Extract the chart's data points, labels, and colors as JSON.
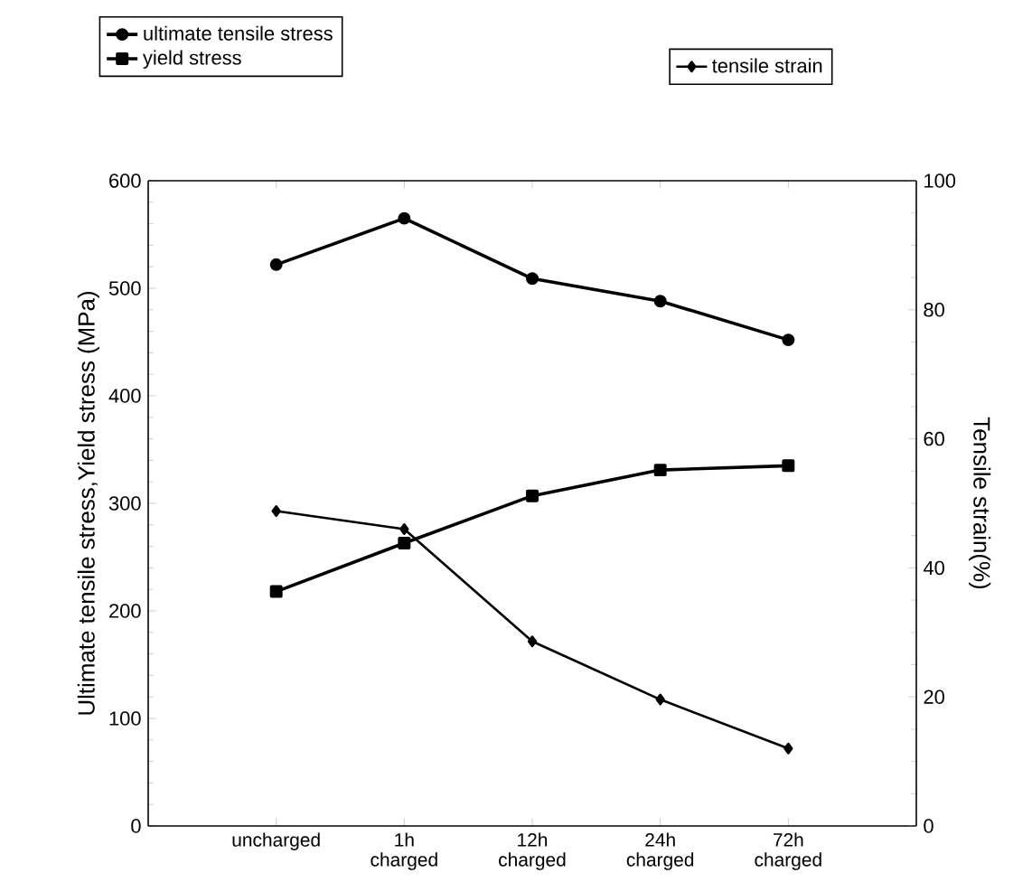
{
  "chart_data": {
    "type": "line",
    "xlabel": null,
    "ylabel": "Ultimate tensile stress,Yield stress (MPa)",
    "y2label": "Tensile strain(%)",
    "categories": [
      "uncharged",
      "1h charged",
      "12h charged",
      "24h charged",
      "72h charged"
    ],
    "series": [
      {
        "name": "ultimate tensile stress",
        "color": "#000000",
        "marker": "circle",
        "values": [
          522,
          565,
          509,
          488,
          452
        ]
      },
      {
        "name": "yield stress",
        "color": "#000000",
        "marker": "square",
        "values": [
          218,
          263,
          307,
          331,
          335
        ]
      },
      {
        "name": "tensile strain",
        "color": "#000000",
        "marker": "diamond",
        "axis": "y2",
        "values": [
          48.8,
          46,
          28.6,
          19.6,
          12.0
        ]
      }
    ],
    "ylim": [
      0,
      600
    ],
    "yticks": [
      0,
      100,
      200,
      300,
      400,
      500,
      600
    ],
    "y2lim": [
      0,
      100
    ],
    "y2ticks": [
      0,
      20,
      40,
      60,
      80,
      100
    ],
    "legend": "top",
    "grid": false,
    "line_style": "solid"
  }
}
